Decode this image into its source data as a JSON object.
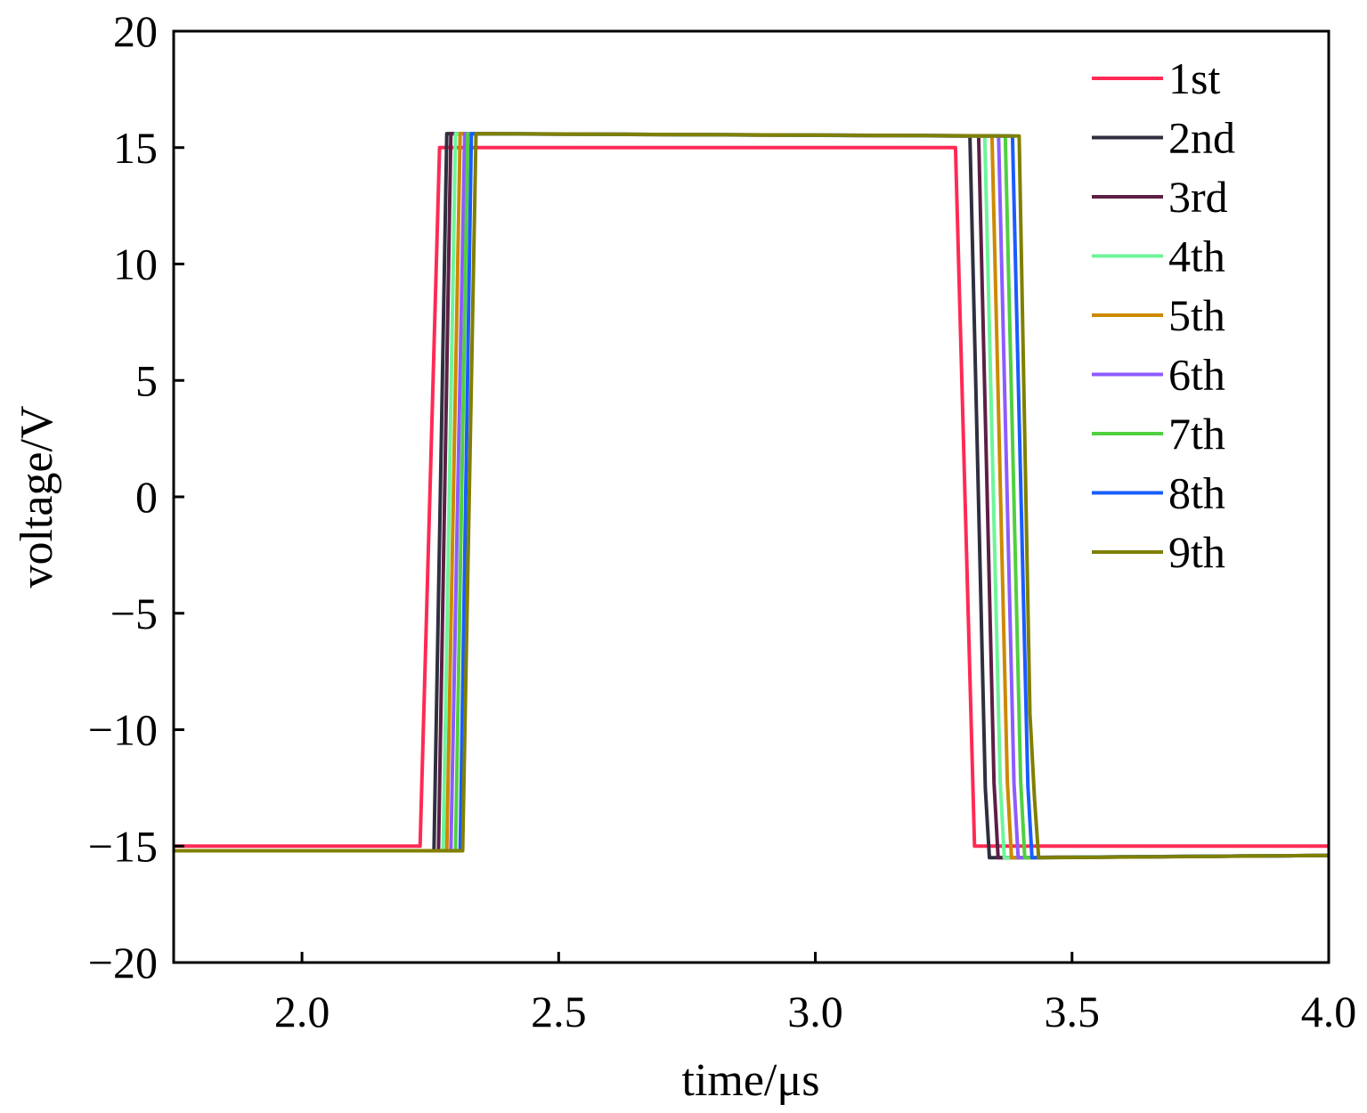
{
  "chart_data": {
    "type": "line",
    "title": "",
    "xlabel": "time/μs",
    "ylabel": "voltage/V",
    "xlim": [
      1.75,
      4.0
    ],
    "ylim": [
      -20,
      20
    ],
    "xticks": [
      2.0,
      2.5,
      3.0,
      3.5,
      4.0
    ],
    "xtick_labels": [
      "2.0",
      "2.5",
      "3.0",
      "3.5",
      "4.0"
    ],
    "yticks": [
      20,
      15,
      10,
      5,
      0,
      -5,
      -10,
      -15,
      -20
    ],
    "ytick_labels": [
      "20",
      "15",
      "10",
      "5",
      "0",
      "−5",
      "−10",
      "−15",
      "−20"
    ],
    "grid": false,
    "legend_position": "top-right",
    "series": [
      {
        "name": "1st",
        "color": "#ff2a55",
        "points": [
          [
            1.75,
            -15
          ],
          [
            2.23,
            -15
          ],
          [
            2.268,
            15
          ],
          [
            3.273,
            15
          ],
          [
            3.31,
            -15
          ],
          [
            4.0,
            -15
          ]
        ]
      },
      {
        "name": "2nd",
        "color": "#2f2f40",
        "points": [
          [
            1.75,
            -15.2
          ],
          [
            2.257,
            -15.2
          ],
          [
            2.282,
            15.6
          ],
          [
            3.301,
            15.5
          ],
          [
            3.331,
            -12.5
          ],
          [
            3.339,
            -15.5
          ],
          [
            4.0,
            -15.4
          ]
        ]
      },
      {
        "name": "3rd",
        "color": "#5c1f45",
        "points": [
          [
            1.75,
            -15.2
          ],
          [
            2.266,
            -15.2
          ],
          [
            2.29,
            15.6
          ],
          [
            3.318,
            15.5
          ],
          [
            3.348,
            -12.3
          ],
          [
            3.356,
            -15.5
          ],
          [
            4.0,
            -15.4
          ]
        ]
      },
      {
        "name": "4th",
        "color": "#6ef59a",
        "points": [
          [
            1.75,
            -15.2
          ],
          [
            2.275,
            -15.2
          ],
          [
            2.299,
            15.6
          ],
          [
            3.33,
            15.5
          ],
          [
            3.36,
            -12.2
          ],
          [
            3.368,
            -15.5
          ],
          [
            4.0,
            -15.4
          ]
        ]
      },
      {
        "name": "5th",
        "color": "#cc8a00",
        "points": [
          [
            1.75,
            -15.2
          ],
          [
            2.282,
            -15.2
          ],
          [
            2.308,
            15.6
          ],
          [
            3.344,
            15.5
          ],
          [
            3.374,
            -12.2
          ],
          [
            3.382,
            -15.5
          ],
          [
            4.0,
            -15.4
          ]
        ]
      },
      {
        "name": "6th",
        "color": "#8c5cff",
        "points": [
          [
            1.75,
            -15.2
          ],
          [
            2.29,
            -15.2
          ],
          [
            2.317,
            15.6
          ],
          [
            3.357,
            15.5
          ],
          [
            3.387,
            -12.3
          ],
          [
            3.395,
            -15.5
          ],
          [
            4.0,
            -15.4
          ]
        ]
      },
      {
        "name": "7th",
        "color": "#50d040",
        "points": [
          [
            1.75,
            -15.2
          ],
          [
            2.299,
            -15.2
          ],
          [
            2.323,
            15.6
          ],
          [
            3.37,
            15.5
          ],
          [
            3.4,
            -12.2
          ],
          [
            3.408,
            -15.5
          ],
          [
            4.0,
            -15.4
          ]
        ]
      },
      {
        "name": "8th",
        "color": "#1a5cff",
        "points": [
          [
            1.75,
            -15.2
          ],
          [
            2.308,
            -15.2
          ],
          [
            2.33,
            15.6
          ],
          [
            3.384,
            15.5
          ],
          [
            3.414,
            -12.4
          ],
          [
            3.422,
            -15.5
          ],
          [
            4.0,
            -15.4
          ]
        ]
      },
      {
        "name": "9th",
        "color": "#808000",
        "points": [
          [
            1.75,
            -15.2
          ],
          [
            2.313,
            -15.2
          ],
          [
            2.339,
            15.6
          ],
          [
            3.397,
            15.5
          ],
          [
            3.418,
            -9.3
          ],
          [
            3.427,
            -13
          ],
          [
            3.435,
            -15.5
          ],
          [
            4.0,
            -15.4
          ]
        ]
      }
    ]
  }
}
